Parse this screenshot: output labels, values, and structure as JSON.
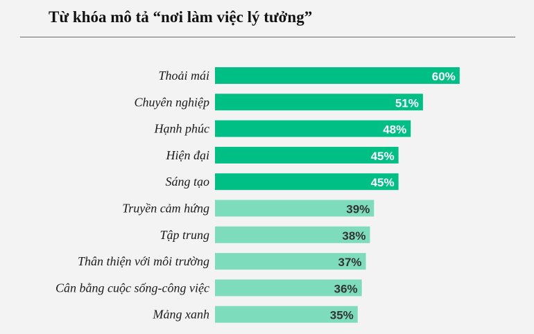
{
  "title": "Từ khóa mô tả “nơi làm việc lý tưởng”",
  "colors": {
    "background": "#f3f3f3",
    "bar_primary": "#00bf84",
    "bar_secondary": "#7ddcbc",
    "label_on_primary": "#ffffff",
    "label_on_secondary": "#333333"
  },
  "chart_data": {
    "type": "bar",
    "orientation": "horizontal",
    "title": "Từ khóa mô tả “nơi làm việc lý tưởng”",
    "categories": [
      "Thoải mái",
      "Chuyên nghiệp",
      "Hạnh phúc",
      "Hiện đại",
      "Sáng tạo",
      "Truyền cảm hứng",
      "Tập trung",
      "Thân thiện với môi trường",
      "Cân bằng cuộc sống-công việc",
      "Mảng xanh"
    ],
    "values": [
      60,
      51,
      48,
      45,
      45,
      39,
      38,
      37,
      36,
      35
    ],
    "value_labels": [
      "60%",
      "51%",
      "48%",
      "45%",
      "45%",
      "39%",
      "38%",
      "37%",
      "36%",
      "35%"
    ],
    "highlight": [
      true,
      true,
      true,
      true,
      true,
      false,
      false,
      false,
      false,
      false
    ],
    "xlim": [
      0,
      100
    ],
    "xlabel": "",
    "ylabel": "",
    "grid": false,
    "legend": "none"
  }
}
